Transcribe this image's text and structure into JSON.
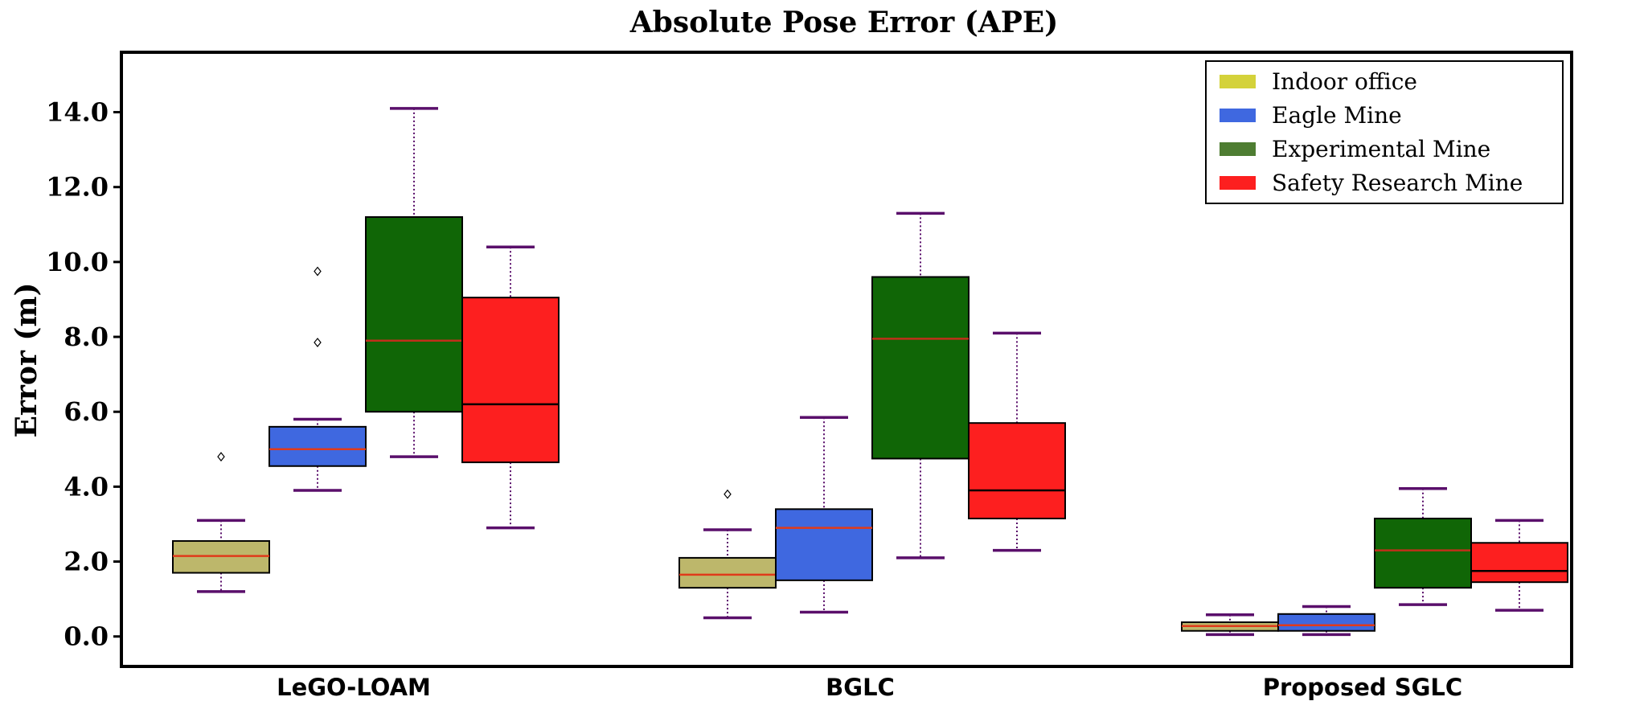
{
  "chart_data": {
    "type": "box",
    "title": "Absolute Pose Error (APE)",
    "xlabel": "",
    "ylabel": "Error (m)",
    "ylim": [
      -0.8,
      15.6
    ],
    "yticks": [
      0.0,
      2.0,
      4.0,
      6.0,
      8.0,
      10.0,
      12.0,
      14.0
    ],
    "ytick_labels": [
      "0.0",
      "2.0",
      "4.0",
      "6.0",
      "8.0",
      "10.0",
      "12.0",
      "14.0"
    ],
    "categories": [
      "LeGO-LOAM",
      "BGLC",
      "Proposed SGLC"
    ],
    "legend_position": "top-right",
    "series": [
      {
        "name": "Indoor office",
        "color": "#bdb76b",
        "legend_color": "#d4d23a",
        "median_color": "#e03a1a",
        "stats": [
          {
            "whislo": 1.2,
            "q1": 1.7,
            "med": 2.15,
            "q3": 2.55,
            "whishi": 3.1,
            "fliers": [
              4.8
            ]
          },
          {
            "whislo": 0.5,
            "q1": 1.3,
            "med": 1.65,
            "q3": 2.1,
            "whishi": 2.85,
            "fliers": [
              3.8
            ]
          },
          {
            "whislo": 0.05,
            "q1": 0.15,
            "med": 0.28,
            "q3": 0.38,
            "whishi": 0.58,
            "fliers": []
          }
        ]
      },
      {
        "name": "Eagle Mine",
        "color": "#3f68e0",
        "legend_color": "#3f68e0",
        "median_color": "#e03a1a",
        "stats": [
          {
            "whislo": 3.9,
            "q1": 4.55,
            "med": 5.0,
            "q3": 5.6,
            "whishi": 5.8,
            "fliers": [
              7.85,
              9.75
            ]
          },
          {
            "whislo": 0.65,
            "q1": 1.5,
            "med": 2.9,
            "q3": 3.4,
            "whishi": 5.85,
            "fliers": []
          },
          {
            "whislo": 0.05,
            "q1": 0.15,
            "med": 0.3,
            "q3": 0.6,
            "whishi": 0.8,
            "fliers": []
          }
        ]
      },
      {
        "name": "Experimental Mine",
        "color": "#106606",
        "legend_color": "#4e7d32",
        "median_color": "#c0301a",
        "stats": [
          {
            "whislo": 4.8,
            "q1": 6.0,
            "med": 7.9,
            "q3": 11.2,
            "whishi": 14.1,
            "fliers": []
          },
          {
            "whislo": 2.1,
            "q1": 4.75,
            "med": 7.95,
            "q3": 9.6,
            "whishi": 11.3,
            "fliers": []
          },
          {
            "whislo": 0.85,
            "q1": 1.3,
            "med": 2.3,
            "q3": 3.15,
            "whishi": 3.95,
            "fliers": []
          }
        ]
      },
      {
        "name": "Safety Research Mine",
        "color": "#fd1f1f",
        "legend_color": "#fd1f1f",
        "median_color": "#000000",
        "stats": [
          {
            "whislo": 2.9,
            "q1": 4.65,
            "med": 6.2,
            "q3": 9.05,
            "whishi": 10.4,
            "fliers": []
          },
          {
            "whislo": 2.3,
            "q1": 3.15,
            "med": 3.9,
            "q3": 5.7,
            "whishi": 8.1,
            "fliers": []
          },
          {
            "whislo": 0.7,
            "q1": 1.45,
            "med": 1.75,
            "q3": 2.5,
            "whishi": 3.1,
            "fliers": []
          }
        ]
      }
    ]
  }
}
